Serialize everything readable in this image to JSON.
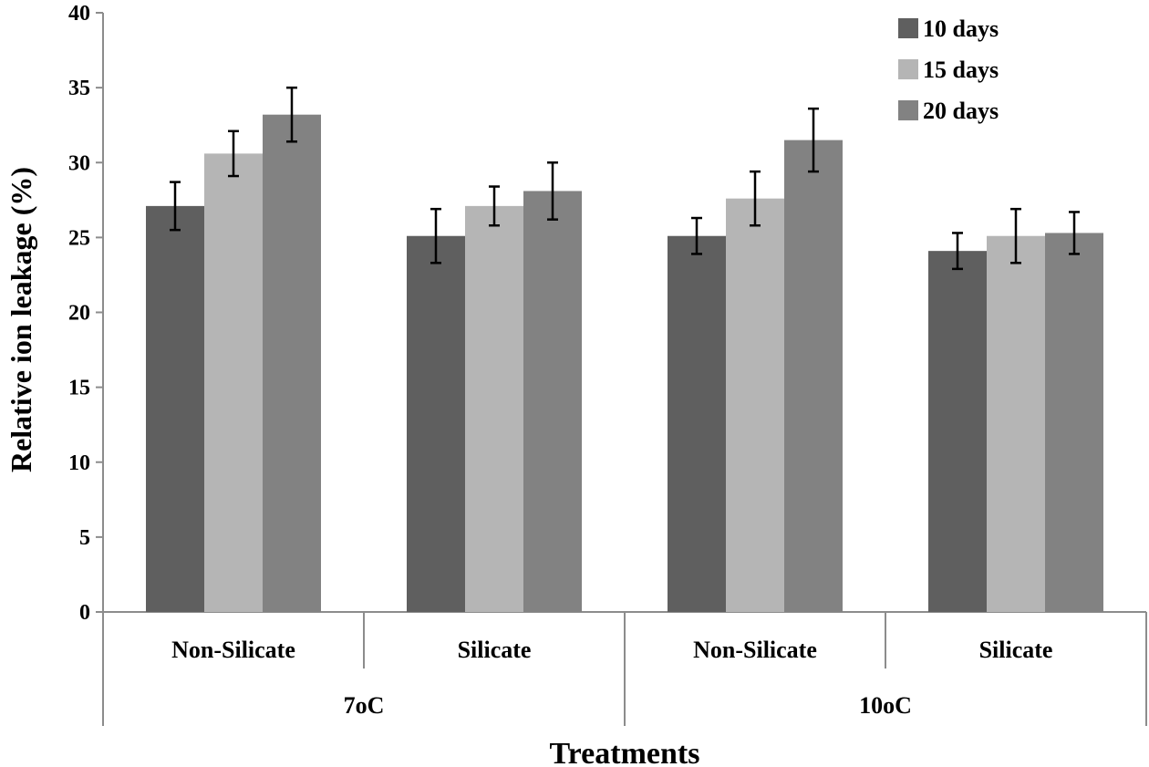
{
  "chart_data": {
    "type": "bar",
    "title": "",
    "xlabel": "Treatments",
    "ylabel": "Relative ion leakage (%)",
    "ylim": [
      0,
      40
    ],
    "yticks": [
      0,
      5,
      10,
      15,
      20,
      25,
      30,
      35,
      40
    ],
    "grid": false,
    "legend_position": "top-right",
    "categories": [
      "Non-Silicate",
      "Silicate",
      "Non-Silicate",
      "Silicate"
    ],
    "groups": [
      {
        "label": "7oC",
        "span": [
          0,
          1
        ]
      },
      {
        "label": "10oC",
        "span": [
          2,
          3
        ]
      }
    ],
    "series": [
      {
        "name": "10 days",
        "color": "#5f5f5f",
        "values": [
          27.1,
          25.1,
          25.1,
          24.1
        ],
        "errors": [
          1.6,
          1.8,
          1.2,
          1.2
        ]
      },
      {
        "name": "15 days",
        "color": "#b5b5b5",
        "values": [
          30.6,
          27.1,
          27.6,
          25.1
        ],
        "errors": [
          1.5,
          1.3,
          1.8,
          1.8
        ]
      },
      {
        "name": "20 days",
        "color": "#828282",
        "values": [
          33.2,
          28.1,
          31.5,
          25.3
        ],
        "errors": [
          1.8,
          1.9,
          2.1,
          1.4
        ]
      }
    ]
  }
}
